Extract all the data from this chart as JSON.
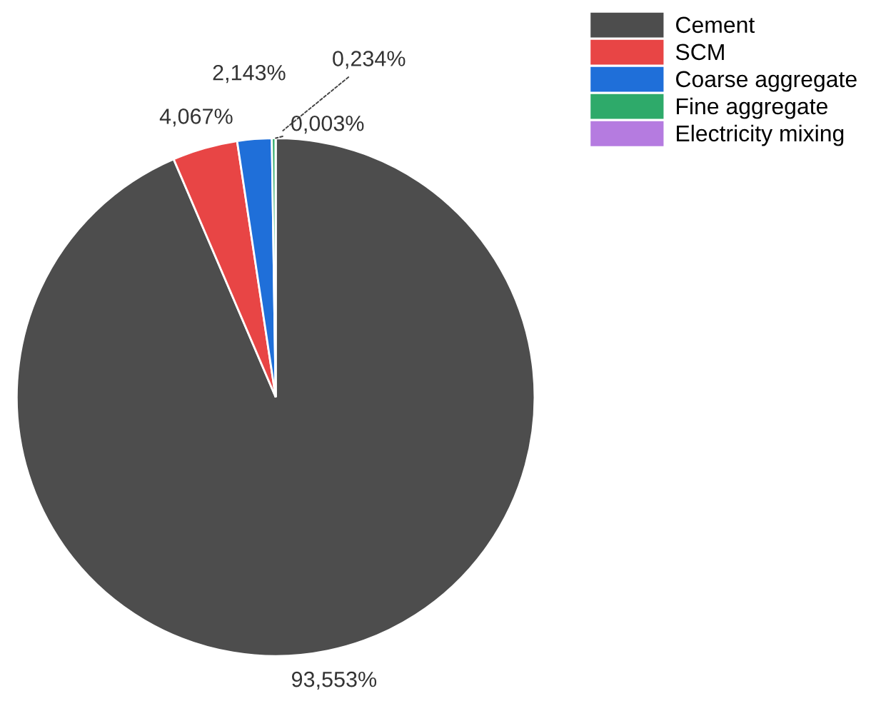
{
  "chart_data": {
    "type": "pie",
    "categories": [
      "Cement",
      "SCM",
      "Coarse aggregate",
      "Fine aggregate",
      "Electricity mixing"
    ],
    "values": [
      93.553,
      4.067,
      2.143,
      0.234,
      0.003
    ],
    "colors": [
      "#4d4d4d",
      "#e84545",
      "#1f6fd9",
      "#2eaa6a",
      "#b57be0"
    ],
    "value_labels": [
      "93,553%",
      "4,067%",
      "2,143%",
      "0,234%",
      "0,003%"
    ],
    "legend": "top right"
  }
}
